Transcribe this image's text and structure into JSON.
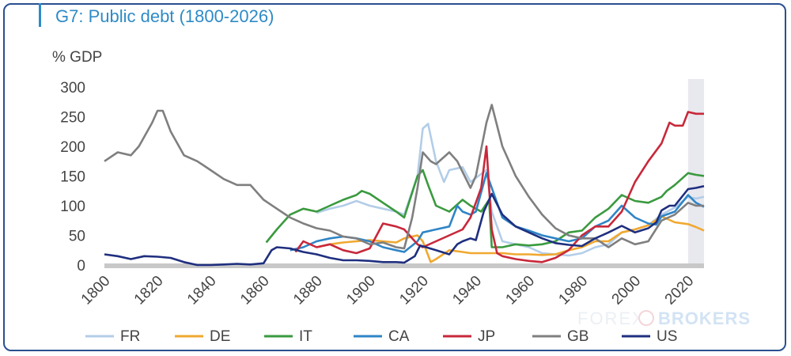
{
  "title": "G7: Public debt (1800-2026)",
  "watermark": {
    "left": "FOREX",
    "right": "BROKERS"
  },
  "chart_data": {
    "type": "line",
    "title": "G7: Public debt (1800-2026)",
    "ylabel": "% GDP",
    "xlabel": "",
    "xlim": [
      1800,
      2026
    ],
    "ylim": [
      0,
      300
    ],
    "yticks": [
      0,
      50,
      100,
      150,
      200,
      250,
      300
    ],
    "xticks": [
      1800,
      1820,
      1840,
      1860,
      1880,
      1900,
      1920,
      1940,
      1960,
      1980,
      2000,
      2020
    ],
    "grid": false,
    "legend": "bottom",
    "shaded_range": [
      2020,
      2026
    ],
    "series": [
      {
        "name": "FR",
        "color": "#b3cde8",
        "points": [
          [
            1880,
            88
          ],
          [
            1885,
            95
          ],
          [
            1890,
            100
          ],
          [
            1895,
            108
          ],
          [
            1900,
            100
          ],
          [
            1905,
            95
          ],
          [
            1910,
            90
          ],
          [
            1913,
            85
          ],
          [
            1918,
            150
          ],
          [
            1920,
            230
          ],
          [
            1922,
            238
          ],
          [
            1925,
            175
          ],
          [
            1928,
            140
          ],
          [
            1930,
            160
          ],
          [
            1935,
            165
          ],
          [
            1938,
            140
          ],
          [
            1944,
            160
          ],
          [
            1946,
            90
          ],
          [
            1950,
            40
          ],
          [
            1955,
            35
          ],
          [
            1960,
            30
          ],
          [
            1965,
            20
          ],
          [
            1970,
            18
          ],
          [
            1975,
            16
          ],
          [
            1980,
            20
          ],
          [
            1985,
            30
          ],
          [
            1990,
            35
          ],
          [
            1995,
            55
          ],
          [
            2000,
            60
          ],
          [
            2005,
            67
          ],
          [
            2010,
            85
          ],
          [
            2015,
            97
          ],
          [
            2020,
            115
          ],
          [
            2023,
            112
          ],
          [
            2026,
            115
          ]
        ]
      },
      {
        "name": "DE",
        "color": "#f0a830",
        "points": [
          [
            1880,
            30
          ],
          [
            1885,
            35
          ],
          [
            1890,
            38
          ],
          [
            1895,
            40
          ],
          [
            1900,
            42
          ],
          [
            1905,
            40
          ],
          [
            1910,
            38
          ],
          [
            1913,
            45
          ],
          [
            1918,
            50
          ],
          [
            1920,
            40
          ],
          [
            1923,
            5
          ],
          [
            1925,
            10
          ],
          [
            1930,
            25
          ],
          [
            1935,
            22
          ],
          [
            1938,
            20
          ],
          [
            1950,
            20
          ],
          [
            1955,
            18
          ],
          [
            1960,
            18
          ],
          [
            1965,
            17
          ],
          [
            1970,
            18
          ],
          [
            1975,
            25
          ],
          [
            1980,
            30
          ],
          [
            1985,
            40
          ],
          [
            1990,
            40
          ],
          [
            1995,
            55
          ],
          [
            2000,
            60
          ],
          [
            2005,
            67
          ],
          [
            2010,
            82
          ],
          [
            2015,
            72
          ],
          [
            2020,
            69
          ],
          [
            2023,
            64
          ],
          [
            2026,
            58
          ]
        ]
      },
      {
        "name": "IT",
        "color": "#3a9a3f",
        "points": [
          [
            1861,
            38
          ],
          [
            1865,
            60
          ],
          [
            1870,
            85
          ],
          [
            1875,
            95
          ],
          [
            1880,
            90
          ],
          [
            1885,
            100
          ],
          [
            1890,
            110
          ],
          [
            1895,
            118
          ],
          [
            1897,
            125
          ],
          [
            1900,
            120
          ],
          [
            1905,
            105
          ],
          [
            1910,
            90
          ],
          [
            1913,
            80
          ],
          [
            1918,
            150
          ],
          [
            1920,
            160
          ],
          [
            1922,
            135
          ],
          [
            1925,
            100
          ],
          [
            1930,
            90
          ],
          [
            1935,
            110
          ],
          [
            1938,
            100
          ],
          [
            1942,
            90
          ],
          [
            1945,
            110
          ],
          [
            1946,
            30
          ],
          [
            1950,
            30
          ],
          [
            1955,
            35
          ],
          [
            1960,
            33
          ],
          [
            1965,
            35
          ],
          [
            1970,
            40
          ],
          [
            1975,
            55
          ],
          [
            1980,
            58
          ],
          [
            1985,
            80
          ],
          [
            1990,
            95
          ],
          [
            1995,
            118
          ],
          [
            2000,
            108
          ],
          [
            2005,
            105
          ],
          [
            2010,
            115
          ],
          [
            2012,
            125
          ],
          [
            2015,
            135
          ],
          [
            2020,
            155
          ],
          [
            2023,
            152
          ],
          [
            2026,
            150
          ]
        ]
      },
      {
        "name": "CA",
        "color": "#2f85c6",
        "points": [
          [
            1870,
            25
          ],
          [
            1875,
            30
          ],
          [
            1880,
            40
          ],
          [
            1885,
            45
          ],
          [
            1890,
            48
          ],
          [
            1895,
            45
          ],
          [
            1900,
            40
          ],
          [
            1905,
            30
          ],
          [
            1910,
            25
          ],
          [
            1913,
            22
          ],
          [
            1918,
            40
          ],
          [
            1920,
            55
          ],
          [
            1925,
            60
          ],
          [
            1930,
            65
          ],
          [
            1933,
            100
          ],
          [
            1935,
            90
          ],
          [
            1938,
            85
          ],
          [
            1940,
            90
          ],
          [
            1944,
            155
          ],
          [
            1946,
            130
          ],
          [
            1950,
            80
          ],
          [
            1955,
            65
          ],
          [
            1960,
            58
          ],
          [
            1965,
            50
          ],
          [
            1970,
            45
          ],
          [
            1975,
            40
          ],
          [
            1980,
            45
          ],
          [
            1985,
            65
          ],
          [
            1990,
            75
          ],
          [
            1995,
            100
          ],
          [
            2000,
            80
          ],
          [
            2005,
            70
          ],
          [
            2008,
            68
          ],
          [
            2010,
            82
          ],
          [
            2015,
            90
          ],
          [
            2020,
            118
          ],
          [
            2023,
            105
          ],
          [
            2026,
            98
          ]
        ]
      },
      {
        "name": "JP",
        "color": "#c8283b",
        "points": [
          [
            1872,
            22
          ],
          [
            1875,
            40
          ],
          [
            1880,
            30
          ],
          [
            1885,
            35
          ],
          [
            1890,
            25
          ],
          [
            1895,
            20
          ],
          [
            1900,
            28
          ],
          [
            1905,
            70
          ],
          [
            1910,
            65
          ],
          [
            1913,
            60
          ],
          [
            1918,
            35
          ],
          [
            1920,
            30
          ],
          [
            1925,
            40
          ],
          [
            1930,
            50
          ],
          [
            1935,
            60
          ],
          [
            1938,
            80
          ],
          [
            1942,
            130
          ],
          [
            1944,
            200
          ],
          [
            1946,
            60
          ],
          [
            1948,
            20
          ],
          [
            1950,
            15
          ],
          [
            1955,
            10
          ],
          [
            1960,
            7
          ],
          [
            1965,
            5
          ],
          [
            1970,
            12
          ],
          [
            1975,
            25
          ],
          [
            1980,
            50
          ],
          [
            1985,
            65
          ],
          [
            1990,
            65
          ],
          [
            1995,
            90
          ],
          [
            2000,
            140
          ],
          [
            2005,
            175
          ],
          [
            2010,
            205
          ],
          [
            2013,
            240
          ],
          [
            2015,
            235
          ],
          [
            2018,
            235
          ],
          [
            2020,
            258
          ],
          [
            2023,
            255
          ],
          [
            2026,
            255
          ]
        ]
      },
      {
        "name": "GB",
        "color": "#7f7f7f",
        "points": [
          [
            1800,
            175
          ],
          [
            1805,
            190
          ],
          [
            1810,
            185
          ],
          [
            1813,
            200
          ],
          [
            1818,
            240
          ],
          [
            1820,
            260
          ],
          [
            1822,
            260
          ],
          [
            1825,
            225
          ],
          [
            1830,
            185
          ],
          [
            1835,
            175
          ],
          [
            1840,
            160
          ],
          [
            1845,
            145
          ],
          [
            1850,
            135
          ],
          [
            1855,
            135
          ],
          [
            1860,
            110
          ],
          [
            1865,
            95
          ],
          [
            1870,
            80
          ],
          [
            1875,
            70
          ],
          [
            1880,
            62
          ],
          [
            1885,
            58
          ],
          [
            1890,
            48
          ],
          [
            1895,
            45
          ],
          [
            1900,
            35
          ],
          [
            1905,
            38
          ],
          [
            1910,
            30
          ],
          [
            1913,
            28
          ],
          [
            1916,
            80
          ],
          [
            1918,
            130
          ],
          [
            1920,
            190
          ],
          [
            1923,
            175
          ],
          [
            1925,
            170
          ],
          [
            1930,
            190
          ],
          [
            1933,
            175
          ],
          [
            1938,
            130
          ],
          [
            1940,
            150
          ],
          [
            1944,
            240
          ],
          [
            1946,
            270
          ],
          [
            1950,
            200
          ],
          [
            1955,
            150
          ],
          [
            1960,
            115
          ],
          [
            1965,
            85
          ],
          [
            1970,
            62
          ],
          [
            1975,
            50
          ],
          [
            1980,
            45
          ],
          [
            1985,
            45
          ],
          [
            1990,
            30
          ],
          [
            1995,
            45
          ],
          [
            2000,
            35
          ],
          [
            2005,
            40
          ],
          [
            2010,
            75
          ],
          [
            2015,
            85
          ],
          [
            2020,
            105
          ],
          [
            2023,
            100
          ],
          [
            2026,
            100
          ]
        ]
      },
      {
        "name": "US",
        "color": "#1f2f7f",
        "points": [
          [
            1800,
            18
          ],
          [
            1805,
            15
          ],
          [
            1810,
            10
          ],
          [
            1815,
            15
          ],
          [
            1820,
            14
          ],
          [
            1825,
            12
          ],
          [
            1830,
            5
          ],
          [
            1835,
            0
          ],
          [
            1840,
            0
          ],
          [
            1845,
            1
          ],
          [
            1850,
            2
          ],
          [
            1855,
            1
          ],
          [
            1860,
            3
          ],
          [
            1863,
            25
          ],
          [
            1865,
            30
          ],
          [
            1870,
            28
          ],
          [
            1875,
            22
          ],
          [
            1880,
            18
          ],
          [
            1885,
            12
          ],
          [
            1890,
            8
          ],
          [
            1895,
            8
          ],
          [
            1900,
            7
          ],
          [
            1905,
            5
          ],
          [
            1910,
            5
          ],
          [
            1913,
            4
          ],
          [
            1917,
            15
          ],
          [
            1919,
            33
          ],
          [
            1925,
            25
          ],
          [
            1930,
            18
          ],
          [
            1933,
            35
          ],
          [
            1935,
            40
          ],
          [
            1938,
            45
          ],
          [
            1940,
            42
          ],
          [
            1943,
            90
          ],
          [
            1946,
            120
          ],
          [
            1950,
            85
          ],
          [
            1955,
            65
          ],
          [
            1960,
            55
          ],
          [
            1965,
            45
          ],
          [
            1970,
            37
          ],
          [
            1975,
            34
          ],
          [
            1980,
            32
          ],
          [
            1985,
            45
          ],
          [
            1990,
            55
          ],
          [
            1995,
            66
          ],
          [
            2000,
            55
          ],
          [
            2005,
            62
          ],
          [
            2008,
            72
          ],
          [
            2010,
            92
          ],
          [
            2013,
            100
          ],
          [
            2015,
            100
          ],
          [
            2020,
            128
          ],
          [
            2023,
            130
          ],
          [
            2026,
            133
          ]
        ]
      }
    ]
  }
}
